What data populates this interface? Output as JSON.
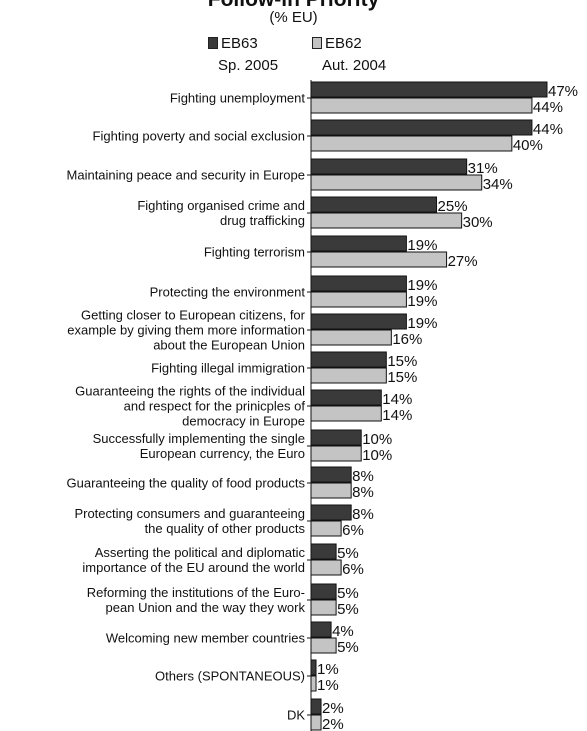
{
  "chart_data": {
    "type": "bar",
    "orientation": "horizontal",
    "title": "Follow-in Priority",
    "subtitle": "(% EU)",
    "series": [
      {
        "name": "EB63",
        "period": "Sp. 2005",
        "color": "#3a3a3a",
        "values": [
          47,
          44,
          31,
          25,
          19,
          19,
          19,
          15,
          14,
          10,
          8,
          8,
          5,
          5,
          4,
          1,
          2
        ]
      },
      {
        "name": "EB62",
        "period": "Aut. 2004",
        "color": "#c4c4c4",
        "values": [
          44,
          40,
          34,
          30,
          27,
          19,
          16,
          15,
          14,
          10,
          8,
          6,
          6,
          5,
          5,
          1,
          2
        ]
      }
    ],
    "categories": [
      [
        "Fighting unemployment"
      ],
      [
        "Fighting poverty and social exclusion"
      ],
      [
        "Maintaining peace and security in Europe"
      ],
      [
        "Fighting organised crime and",
        "drug trafficking"
      ],
      [
        "Fighting terrorism"
      ],
      [
        "Protecting the environment"
      ],
      [
        "Getting closer to European citizens, for",
        "example by giving them more information",
        "about the European Union"
      ],
      [
        "Fighting illegal immigration"
      ],
      [
        "Guaranteeing the rights of the individual",
        "and respect for the prinicples of",
        "democracy in Europe"
      ],
      [
        "Successfully implementing the single",
        "European currency, the Euro"
      ],
      [
        "Guaranteeing the quality of food products"
      ],
      [
        "Protecting consumers and guaranteeing",
        "the quality of other products"
      ],
      [
        "Asserting the political and diplomatic",
        "importance of the EU around the world"
      ],
      [
        "Reforming the institutions of the Euro-",
        "pean Union and the way they work"
      ],
      [
        "Welcoming new member countries"
      ],
      [
        "Others (SPONTANEOUS)"
      ],
      [
        "DK"
      ]
    ],
    "value_suffix": "%",
    "xlim": [
      0,
      47
    ],
    "grid": false,
    "legend_position": "top"
  }
}
